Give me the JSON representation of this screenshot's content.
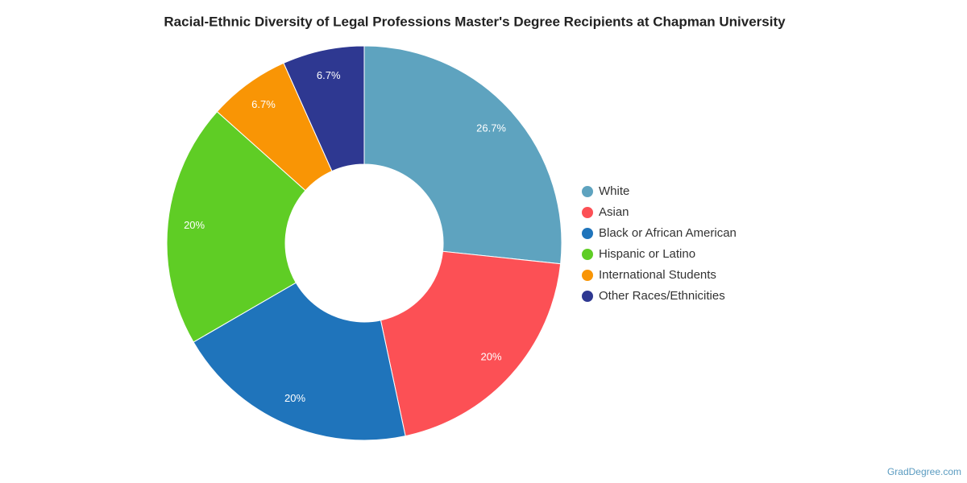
{
  "chart_data": {
    "type": "donut",
    "title": "Racial-Ethnic Diversity of Legal Professions Master's Degree Recipients at Chapman University",
    "categories": [
      "White",
      "Asian",
      "Black or African American",
      "Hispanic or Latino",
      "International Students",
      "Other Races/Ethnicities"
    ],
    "values": [
      26.7,
      20,
      20,
      20,
      6.7,
      6.7
    ],
    "value_labels": [
      "26.7%",
      "20%",
      "20%",
      "20%",
      "6.7%",
      "6.7%"
    ],
    "colors": [
      "#5ea3bf",
      "#fc5055",
      "#1f74bb",
      "#5fcd25",
      "#f99505",
      "#2e3891"
    ],
    "legend": "right",
    "source": "GradDegree.com"
  }
}
